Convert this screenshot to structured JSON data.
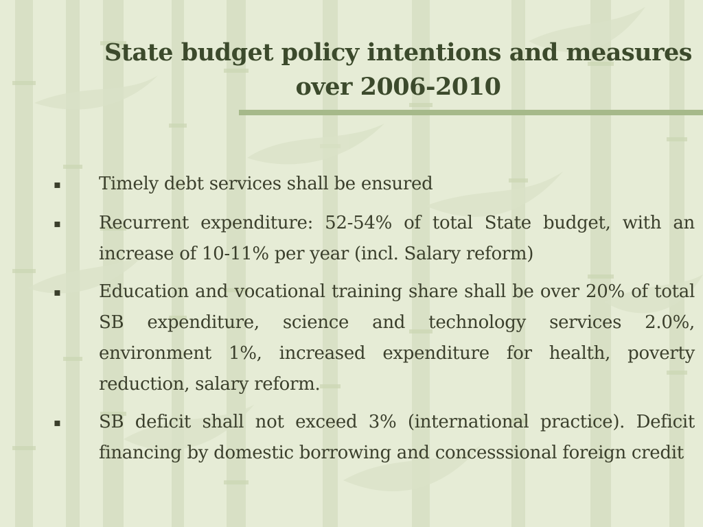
{
  "slide": {
    "title": "State budget policy intentions and measures over 2006-2010",
    "bullet_glyph": "▪",
    "bullets": [
      {
        "text": "Timely debt services shall be ensured"
      },
      {
        "text": "Recurrent expenditure: 52-54% of total State budget, with an increase of 10-11% per year (incl. Salary reform)"
      },
      {
        "text": "Education and vocational training share shall be over 20% of total SB expenditure, science and technology services 2.0%, environment 1%, increased expenditure for health, poverty reduction, salary reform."
      },
      {
        "text": "SB deficit shall not exceed 3% (international practice). Deficit financing by domestic borrowing and concesssional foreign credit"
      }
    ]
  },
  "colors": {
    "background": "#e6ecd6",
    "title_text": "#3c4a2c",
    "body_text": "#3b3f2c",
    "rule": "#a6b98a",
    "bamboo": "#d3dcbf"
  }
}
